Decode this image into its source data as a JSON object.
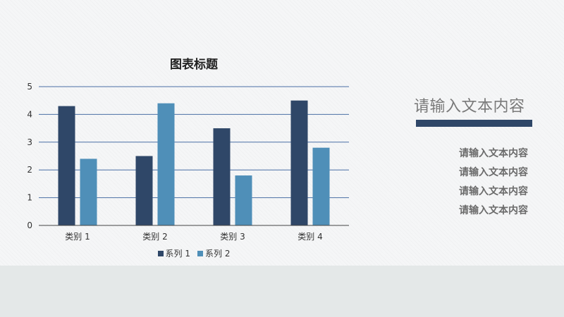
{
  "chart_data": {
    "type": "bar",
    "title": "图表标题",
    "categories": [
      "类别 1",
      "类别 2",
      "类别 3",
      "类别 4"
    ],
    "series": [
      {
        "name": "系列 1",
        "values": [
          4.3,
          2.5,
          3.5,
          4.5
        ],
        "color": "#2f4768"
      },
      {
        "name": "系列 2",
        "values": [
          2.4,
          4.4,
          1.8,
          2.8
        ],
        "color": "#4f8fb8"
      }
    ],
    "ylim": [
      0,
      5
    ],
    "yticks": [
      0,
      1,
      2,
      3,
      4,
      5
    ],
    "grid": true,
    "gridline_color": "#4a6fa5",
    "legend": "bottom"
  },
  "side_panel": {
    "title": "请输入文本内容",
    "items": [
      "请输入文本内容",
      "请输入文本内容",
      "请输入文本内容",
      "请输入文本内容"
    ]
  }
}
